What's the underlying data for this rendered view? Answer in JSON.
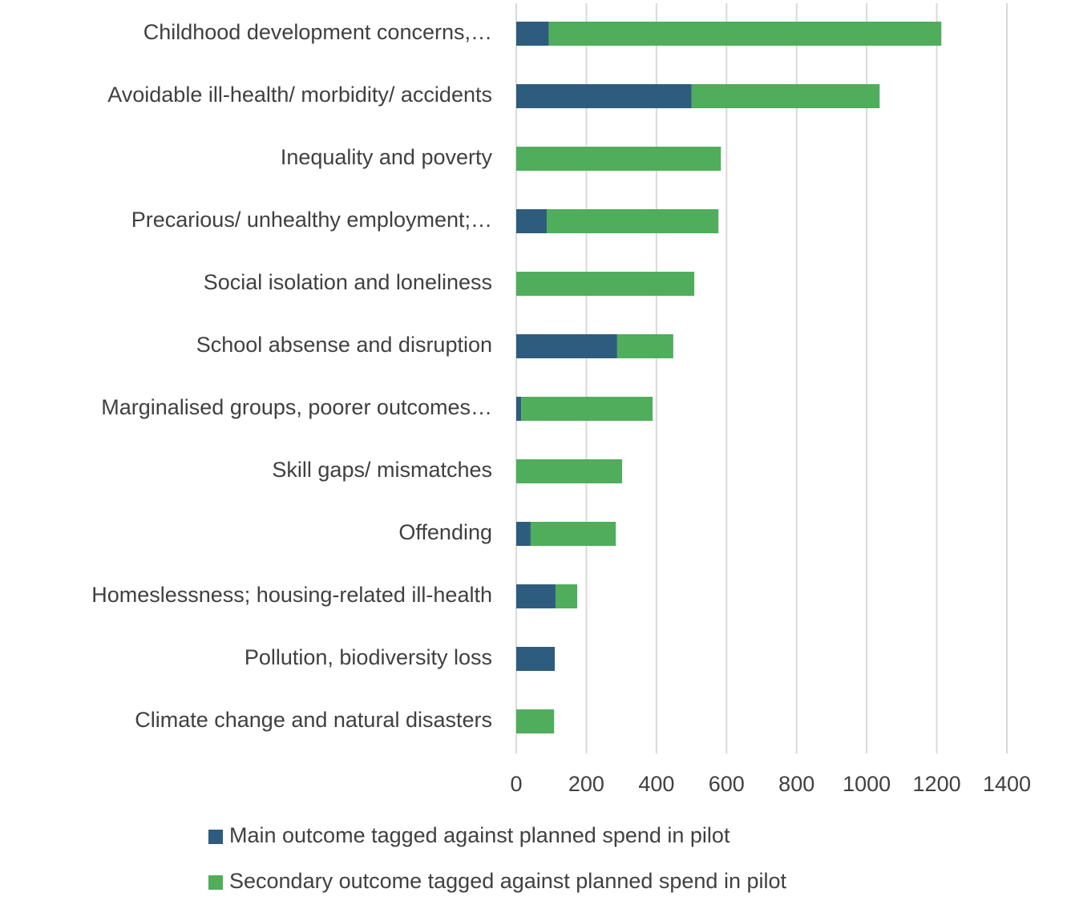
{
  "chart_data": {
    "type": "stacked-barh",
    "categories": [
      "Childhood development concerns,…",
      "Avoidable ill-health/ morbidity/ accidents",
      "Inequality and poverty",
      "Precarious/ unhealthy employment;…",
      "Social isolation and loneliness",
      "School absense and disruption",
      "Marginalised groups, poorer outcomes…",
      "Skill gaps/ mismatches",
      "Offending",
      "Homeslessness; housing-related ill-health",
      "Pollution, biodiversity loss",
      "Climate change and natural disasters"
    ],
    "series": [
      {
        "name": "Main outcome tagged against planned spend in pilot",
        "color": "#2e5c7e",
        "values": [
          93,
          500,
          0,
          87,
          0,
          288,
          14,
          0,
          41,
          112,
          110,
          0
        ]
      },
      {
        "name": "Secondary outcome tagged against planned spend in pilot",
        "color": "#4fad5b",
        "values": [
          1120,
          537,
          584,
          490,
          508,
          160,
          375,
          302,
          243,
          62,
          0,
          108
        ]
      }
    ],
    "xlim": [
      0,
      1400
    ],
    "xticks": [
      0,
      200,
      400,
      600,
      800,
      1000,
      1200,
      1400
    ],
    "grid": true,
    "legend": "bottom"
  }
}
